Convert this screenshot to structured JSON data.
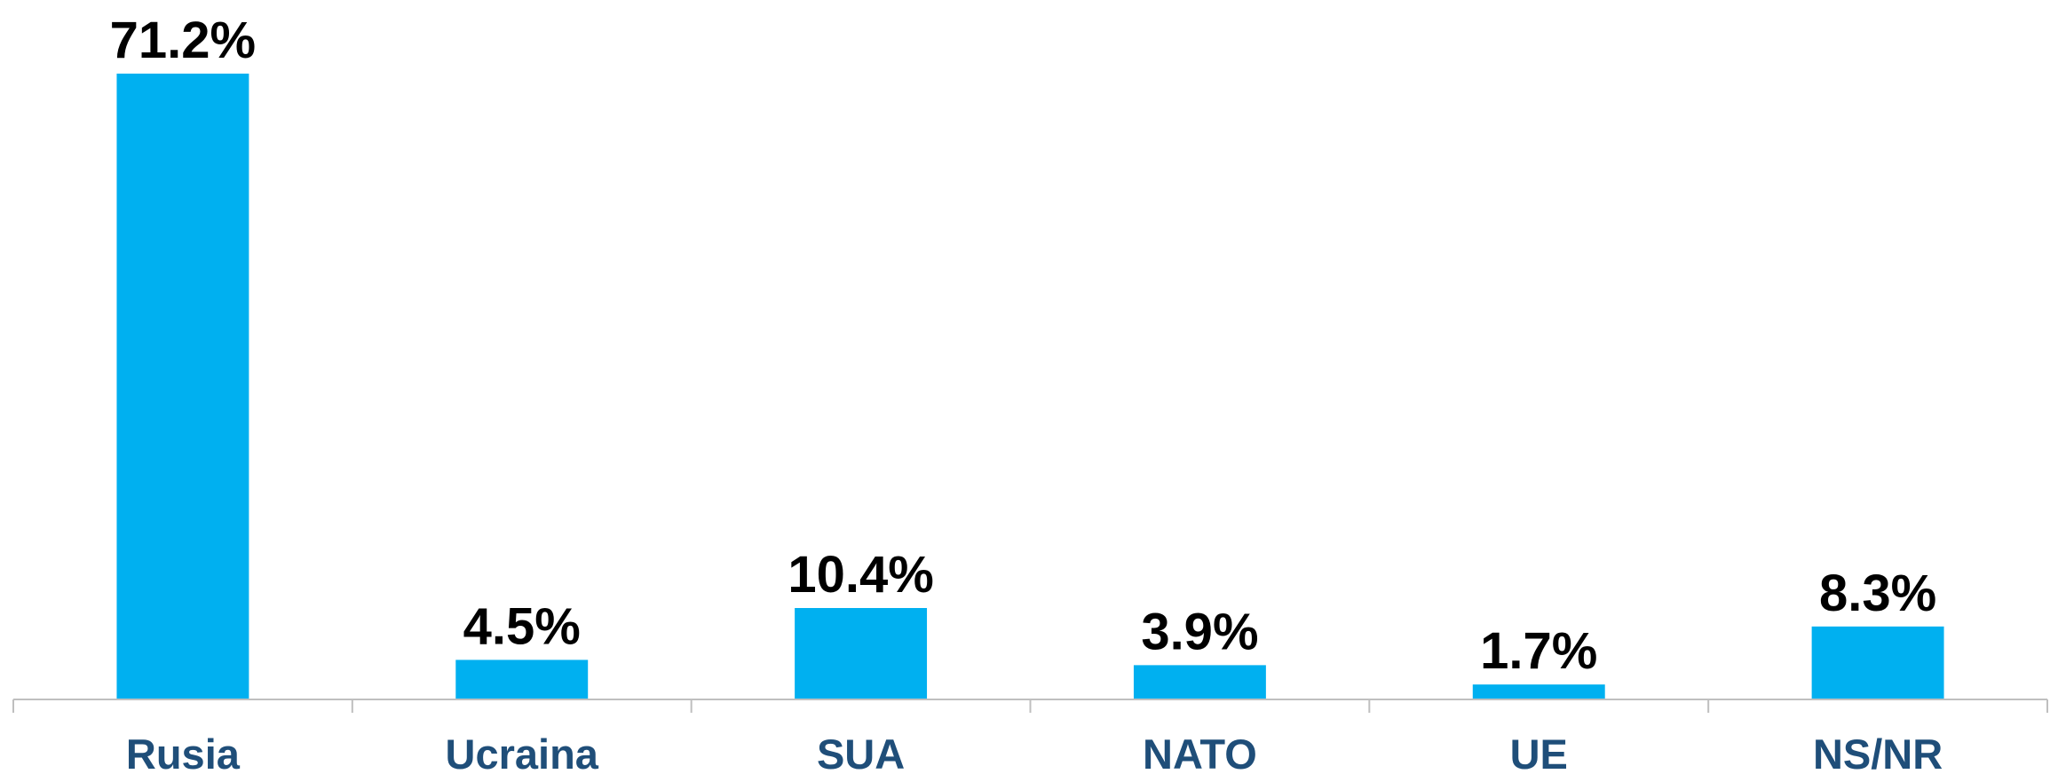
{
  "chart_data": {
    "type": "bar",
    "categories": [
      "Rusia",
      "Ucraina",
      "SUA",
      "NATO",
      "UE",
      "NS/NR"
    ],
    "values": [
      71.2,
      4.5,
      10.4,
      3.9,
      1.7,
      8.3
    ],
    "value_labels": [
      "71.2%",
      "4.5%",
      "10.4%",
      "3.9%",
      "1.7%",
      "8.3%"
    ],
    "color": "#00b0f0",
    "ylim": [
      0,
      72
    ]
  }
}
